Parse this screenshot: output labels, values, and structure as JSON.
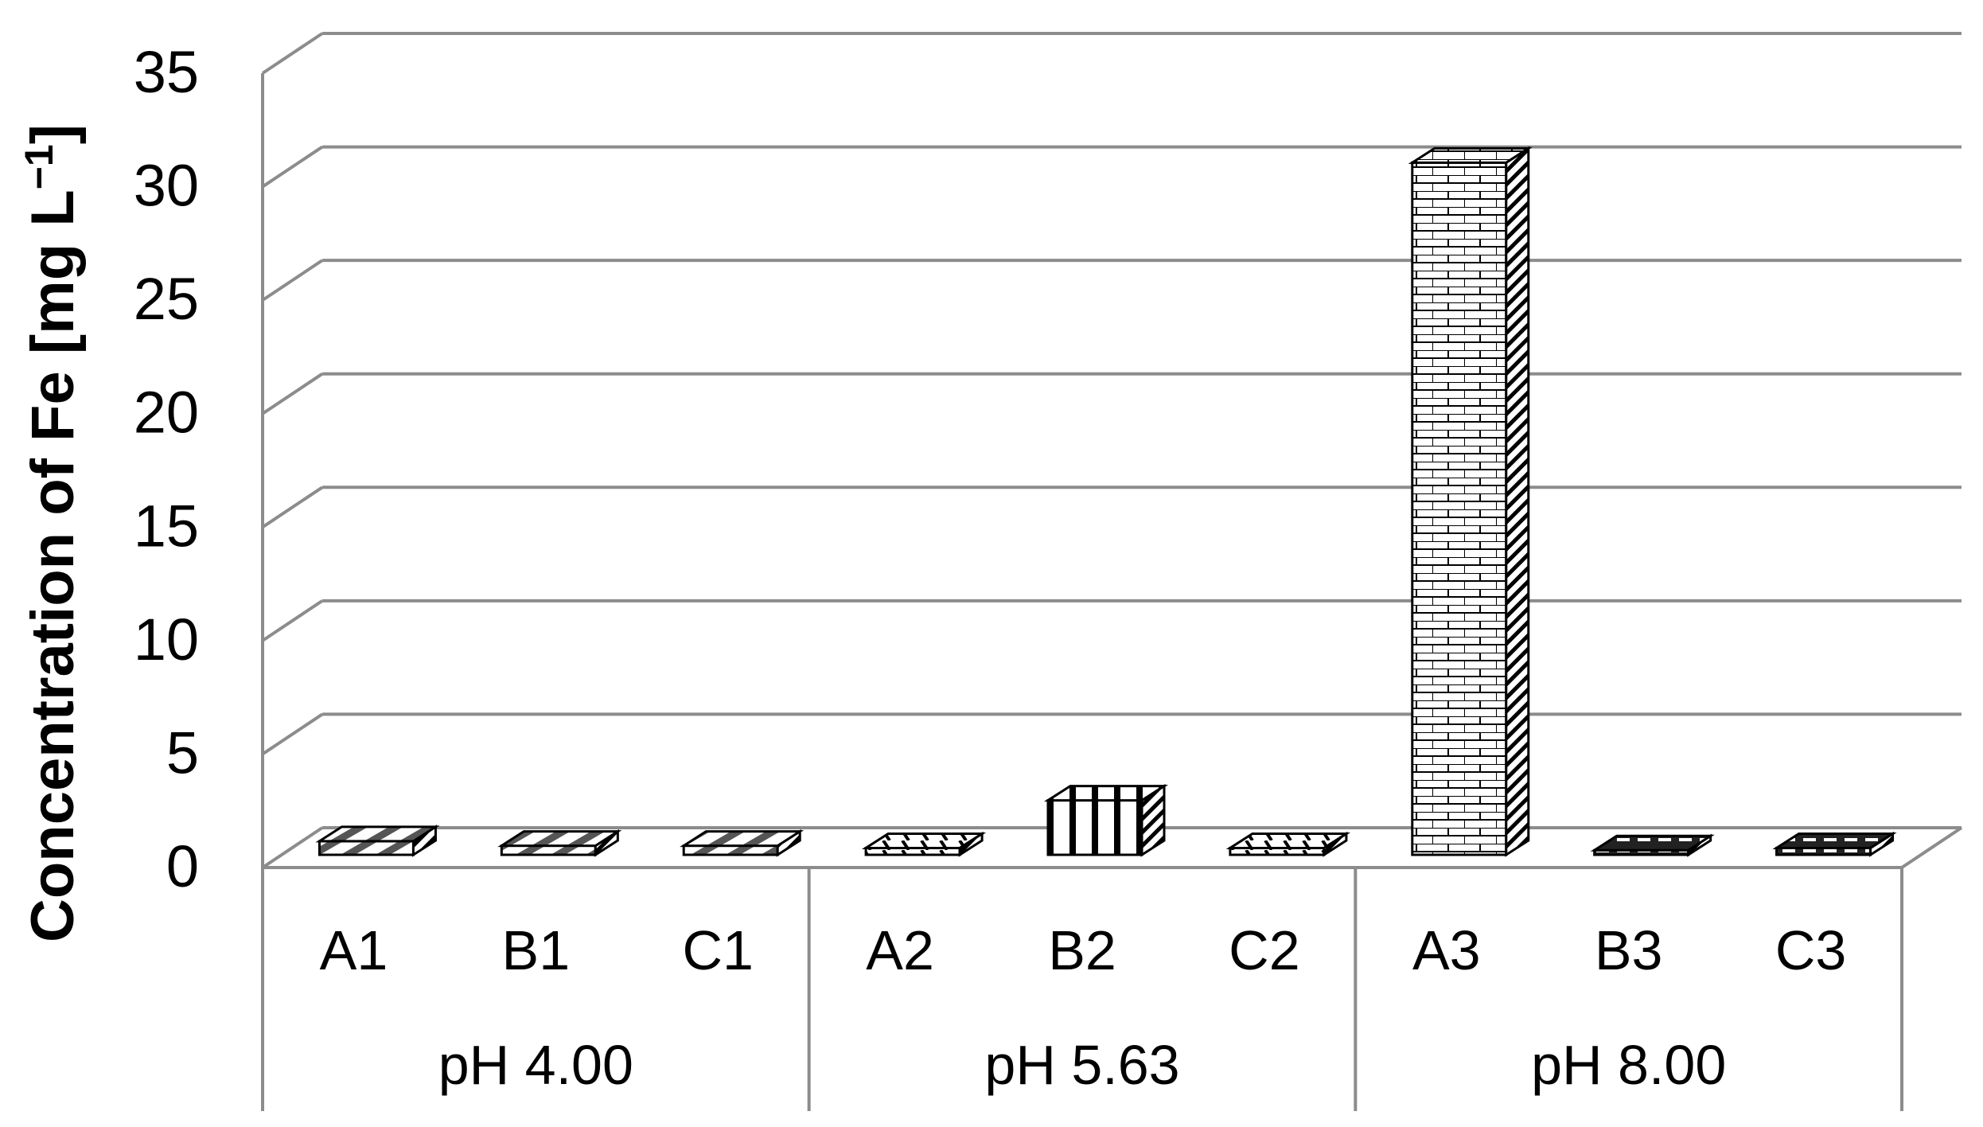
{
  "chart_data": {
    "type": "bar",
    "style": "3d-clustered-column",
    "ylabel": {
      "text": "Concentration of Fe  [mg L",
      "superscript": "−1",
      "close": "]"
    },
    "ylim": [
      0,
      35
    ],
    "yticks": [
      "0",
      "5",
      "10",
      "15",
      "20",
      "25",
      "30",
      "35"
    ],
    "grid": true,
    "categories": [
      "A1",
      "B1",
      "C1",
      "A2",
      "B2",
      "C2",
      "A3",
      "B3",
      "C3"
    ],
    "groups": [
      {
        "label": "pH 4.00",
        "categories": [
          "A1",
          "B1",
          "C1"
        ]
      },
      {
        "label": "pH 5.63",
        "categories": [
          "A2",
          "B2",
          "C2"
        ]
      },
      {
        "label": "pH 8.00",
        "categories": [
          "A3",
          "B3",
          "C3"
        ]
      }
    ],
    "values": [
      0.6,
      0.4,
      0.4,
      0.3,
      2.4,
      0.3,
      30.5,
      0.2,
      0.3
    ],
    "patterns": [
      "hatch-a",
      "hatch-a",
      "hatch-a",
      "dash",
      "vstripe",
      "dash",
      "brick",
      "dot",
      "dot"
    ]
  },
  "colors": {
    "grid": "#8c8c8c",
    "bar_face": "#ffffff",
    "bar_line": "#000000",
    "text": "#000000"
  }
}
